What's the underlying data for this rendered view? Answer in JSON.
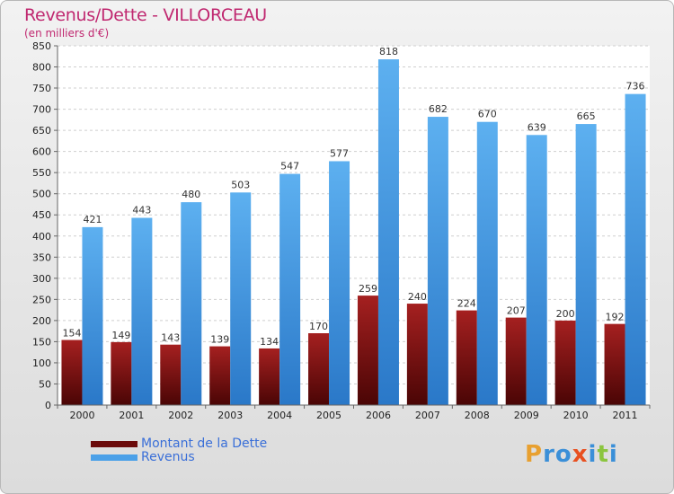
{
  "header": {
    "title": "Revenus/Dette - VILLORCEAU",
    "subtitle": "(en milliers d'€)"
  },
  "legend": {
    "debt_label": "Montant de la Dette",
    "revenue_label": "Revenus"
  },
  "logo": {
    "text": "Proxiti",
    "letters": [
      {
        "ch": "P",
        "color": "#e8a030"
      },
      {
        "ch": "r",
        "color": "#3a8fd8"
      },
      {
        "ch": "o",
        "color": "#3a8fd8"
      },
      {
        "ch": "x",
        "color": "#e85020"
      },
      {
        "ch": "i",
        "color": "#3a8fd8"
      },
      {
        "ch": "t",
        "color": "#8bc53f"
      },
      {
        "ch": "i",
        "color": "#3a8fd8"
      }
    ]
  },
  "colors": {
    "debt": "#6b0a0a",
    "revenue": "#4aa0e8",
    "title": "#c02870"
  },
  "chart_data": {
    "type": "bar",
    "title": "Revenus/Dette - VILLORCEAU",
    "subtitle": "(en milliers d'€)",
    "categories": [
      "2000",
      "2001",
      "2002",
      "2003",
      "2004",
      "2005",
      "2006",
      "2007",
      "2008",
      "2009",
      "2010",
      "2011"
    ],
    "series": [
      {
        "name": "Montant de la Dette",
        "values": [
          154,
          149,
          143,
          139,
          134,
          170,
          259,
          240,
          224,
          207,
          200,
          192
        ]
      },
      {
        "name": "Revenus",
        "values": [
          421,
          443,
          480,
          503,
          547,
          577,
          818,
          682,
          670,
          639,
          665,
          736
        ]
      }
    ],
    "ylim": [
      0,
      850
    ],
    "yticks": [
      0,
      50,
      100,
      150,
      200,
      250,
      300,
      350,
      400,
      450,
      500,
      550,
      600,
      650,
      700,
      750,
      800,
      850
    ],
    "grid": true,
    "legend_position": "bottom-left"
  }
}
